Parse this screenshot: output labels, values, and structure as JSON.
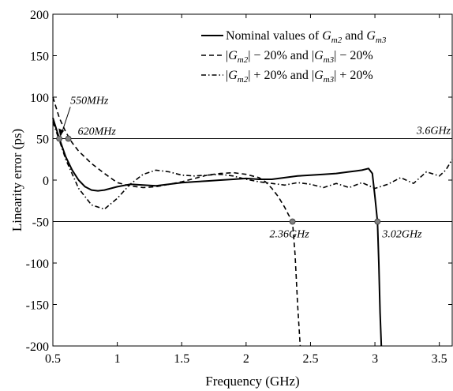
{
  "chart_data": {
    "type": "line",
    "xlabel": "Frequency (GHz)",
    "ylabel": "Linearity error (ps)",
    "xlim": [
      0.5,
      3.6
    ],
    "ylim": [
      -200,
      200
    ],
    "x_ticks": [
      0.5,
      1,
      1.5,
      2,
      2.5,
      3,
      3.5
    ],
    "x_tick_labels": [
      "0.5",
      "1",
      "1.5",
      "2",
      "2.5",
      "3",
      "3.5"
    ],
    "y_ticks": [
      200,
      150,
      100,
      50,
      0,
      -50,
      -100,
      -150,
      -200
    ],
    "y_tick_labels": [
      "200",
      "150",
      "100",
      "50",
      "0",
      "-50",
      "-100",
      "-150",
      "-200"
    ],
    "grid": false,
    "legend_position": "top-right",
    "legend": [
      "Nominal values of G_m2 and G_m3",
      "|G_m2| − 20% and |G_m3| − 20%",
      "|G_m2| + 20% and |G_m3| + 20%"
    ],
    "reference_lines": [
      {
        "y": 50,
        "label": "3.6GHz"
      },
      {
        "y": -50,
        "label": ""
      }
    ],
    "series": [
      {
        "line_style": "solid",
        "x": [
          0.5,
          0.55,
          0.6,
          0.65,
          0.7,
          0.75,
          0.8,
          0.85,
          0.9,
          1.0,
          1.1,
          1.2,
          1.3,
          1.4,
          1.5,
          1.6,
          1.7,
          1.8,
          1.9,
          2.0,
          2.1,
          2.2,
          2.3,
          2.4,
          2.5,
          2.6,
          2.7,
          2.8,
          2.85,
          2.9,
          2.95,
          2.98,
          3.0,
          3.02,
          3.03,
          3.04,
          3.05
        ],
        "y": [
          75,
          50,
          28,
          12,
          0,
          -8,
          -12,
          -13,
          -12,
          -8,
          -5,
          -6,
          -7,
          -5,
          -3,
          -2,
          -1,
          0,
          1,
          2,
          1,
          1,
          3,
          5,
          6,
          7,
          8,
          10,
          11,
          12,
          14,
          8,
          -20,
          -50,
          -100,
          -160,
          -200
        ]
      },
      {
        "line_style": "dashed",
        "x": [
          0.5,
          0.55,
          0.6,
          0.65,
          0.7,
          0.8,
          0.9,
          1.0,
          1.1,
          1.2,
          1.3,
          1.4,
          1.5,
          1.6,
          1.7,
          1.8,
          1.9,
          2.0,
          2.1,
          2.15,
          2.2,
          2.25,
          2.3,
          2.33,
          2.36,
          2.38,
          2.4,
          2.42
        ],
        "y": [
          100,
          75,
          58,
          45,
          35,
          20,
          8,
          -3,
          -7,
          -9,
          -8,
          -5,
          -2,
          2,
          6,
          8,
          9,
          7,
          3,
          -2,
          -10,
          -20,
          -33,
          -42,
          -50,
          -90,
          -150,
          -200
        ]
      },
      {
        "line_style": "dashdot",
        "x": [
          0.5,
          0.55,
          0.6,
          0.7,
          0.8,
          0.9,
          1.0,
          1.1,
          1.2,
          1.3,
          1.4,
          1.5,
          1.6,
          1.7,
          1.8,
          1.9,
          2.0,
          2.1,
          2.2,
          2.3,
          2.4,
          2.5,
          2.6,
          2.7,
          2.8,
          2.9,
          3.0,
          3.1,
          3.2,
          3.3,
          3.4,
          3.5,
          3.55,
          3.6
        ],
        "y": [
          70,
          48,
          25,
          -10,
          -30,
          -35,
          -22,
          -5,
          7,
          12,
          10,
          6,
          5,
          6,
          7,
          5,
          1,
          -2,
          -4,
          -6,
          -3,
          -5,
          -9,
          -4,
          -9,
          -3,
          -10,
          -5,
          3,
          -4,
          10,
          5,
          12,
          25
        ]
      }
    ],
    "annotations": [
      {
        "text": "550MHz",
        "x": 0.55,
        "y": 50
      },
      {
        "text": "620MHz",
        "x": 0.62,
        "y": 50
      },
      {
        "text": "2.36GHz",
        "x": 2.36,
        "y": -50
      },
      {
        "text": "3.02GHz",
        "x": 3.02,
        "y": -50
      }
    ],
    "colors": {
      "line": "#000000",
      "marker": "#808080"
    }
  }
}
